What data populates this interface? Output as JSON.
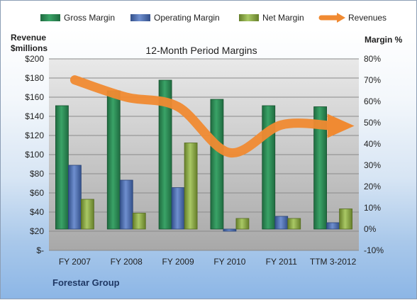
{
  "chart_data": {
    "type": "bar",
    "title": "12-Month Period Margins",
    "company": "Forestar Group",
    "left_axis_label_line1": "Revenue",
    "left_axis_label_line2": "$millions",
    "right_axis_label": "Margin %",
    "categories": [
      "FY 2007",
      "FY 2008",
      "FY 2009",
      "FY 2010",
      "FY 2011",
      "TTM 3-2012"
    ],
    "left_ticks": [
      "$-",
      "$20",
      "$40",
      "$60",
      "$80",
      "$100",
      "$120",
      "$140",
      "$160",
      "$180",
      "$200"
    ],
    "right_ticks": [
      "-10%",
      "0%",
      "10%",
      "20%",
      "30%",
      "40%",
      "50%",
      "60%",
      "70%",
      "80%"
    ],
    "ylim_left": [
      0,
      200
    ],
    "ylim_right": [
      -10,
      80
    ],
    "series": [
      {
        "name": "Gross Margin",
        "axis": "right",
        "color": "#2e8b57",
        "values": [
          58,
          65,
          70,
          61,
          58,
          57.5
        ]
      },
      {
        "name": "Operating Margin",
        "axis": "right",
        "color": "#4f6fae",
        "values": [
          30,
          23,
          19.5,
          -1,
          6,
          3
        ]
      },
      {
        "name": "Net Margin",
        "axis": "right",
        "color": "#8eb04a",
        "values": [
          14,
          7.5,
          40.5,
          5,
          5,
          9.5
        ]
      },
      {
        "name": "Revenues",
        "axis": "left",
        "type": "line",
        "color": "#f08a32",
        "values": [
          178,
          160,
          150,
          102,
          131,
          130
        ]
      }
    ],
    "legend_position": "top",
    "grid": true
  }
}
